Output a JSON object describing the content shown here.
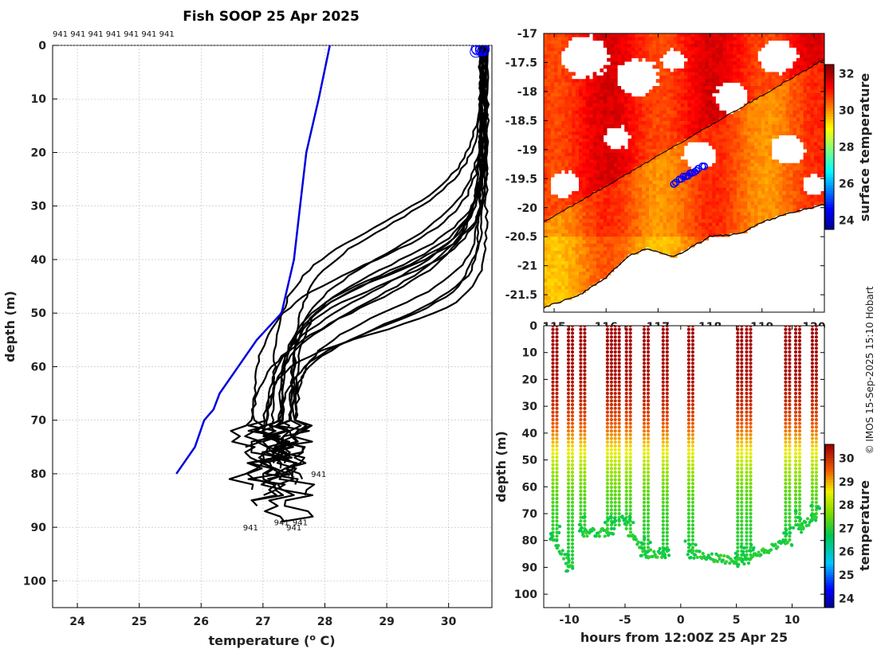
{
  "title": "Fish SOOP 25 Apr 2025",
  "header_tags": "941 941 941 941 941 941 941",
  "credit": "© IMOS 15-Sep-2025 15:10 Hobart",
  "chart_data": [
    {
      "type": "line",
      "name": "temperature-depth profiles",
      "xlabel": "temperature (o C)",
      "xlabel_main": "temperature (",
      "xlabel_sup": "o",
      "xlabel_tail": " C)",
      "ylabel": "depth (m)",
      "xlim": [
        23.6,
        30.7
      ],
      "ylim": [
        105,
        0
      ],
      "xticks": [
        24,
        25,
        26,
        27,
        28,
        29,
        30
      ],
      "yticks": [
        0,
        10,
        20,
        30,
        40,
        50,
        60,
        70,
        80,
        90,
        100
      ],
      "grid": true,
      "climatology": {
        "color": "#0000dd",
        "temp": [
          28.08,
          27.9,
          27.7,
          27.6,
          27.5,
          27.3,
          26.9,
          26.6,
          26.3,
          26.2,
          26.05,
          25.9,
          25.6
        ],
        "depth": [
          0,
          10,
          20,
          30,
          40,
          50,
          55,
          60,
          65,
          68,
          70,
          75,
          80
        ]
      },
      "profile_color": "#000000",
      "surface_marker_color": "#0000ff",
      "bottom_labels": [
        {
          "text": "941",
          "temp": 26.8,
          "depth": 90
        },
        {
          "text": "941",
          "temp": 27.3,
          "depth": 89
        },
        {
          "text": "941",
          "temp": 27.6,
          "depth": 89
        },
        {
          "text": "941",
          "temp": 27.5,
          "depth": 90
        },
        {
          "text": "941",
          "temp": 27.4,
          "depth": 80
        },
        {
          "text": "941",
          "temp": 27.9,
          "depth": 80
        }
      ]
    },
    {
      "type": "heatmap",
      "name": "sea surface temperature map",
      "colorbar_label": "surface temperature",
      "colorbar_ticks": [
        24,
        26,
        28,
        30,
        32
      ],
      "clim": [
        23.5,
        32.5
      ],
      "xlim": [
        114.8,
        120.2
      ],
      "ylim": [
        -21.8,
        -17
      ],
      "yticks": [
        -17,
        -17.5,
        -18,
        -18.5,
        -19,
        -19.5,
        -20,
        -20.5,
        -21,
        -21.5
      ],
      "xticks": [
        115,
        116,
        117,
        118,
        119,
        120
      ],
      "track_color": "#0000ff"
    },
    {
      "type": "scatter",
      "name": "depth-time temperature section",
      "xlabel": "hours from 12:00Z 25 Apr 25",
      "ylabel": "depth (m)",
      "xlim": [
        -12.3,
        12.9
      ],
      "ylim": [
        105,
        0
      ],
      "xticks": [
        -10,
        -5,
        0,
        5,
        10
      ],
      "yticks": [
        0,
        10,
        20,
        30,
        40,
        50,
        60,
        70,
        80,
        90,
        100
      ],
      "colorbar_label": "temperature",
      "colorbar_ticks": [
        24,
        25,
        26,
        27,
        28,
        29,
        30
      ],
      "clim": [
        23.6,
        30.6
      ],
      "casts": [
        {
          "t": -11.3,
          "max_depth": 80
        },
        {
          "t": -9.9,
          "max_depth": 90
        },
        {
          "t": -8.8,
          "max_depth": 77
        },
        {
          "t": -6.4,
          "max_depth": 77
        },
        {
          "t": -5.7,
          "max_depth": 75
        },
        {
          "t": -4.7,
          "max_depth": 77
        },
        {
          "t": -3.1,
          "max_depth": 85
        },
        {
          "t": -1.4,
          "max_depth": 85
        },
        {
          "t": 0.9,
          "max_depth": 85
        },
        {
          "t": 5.3,
          "max_depth": 88
        },
        {
          "t": 6.1,
          "max_depth": 87
        },
        {
          "t": 9.6,
          "max_depth": 80
        },
        {
          "t": 10.5,
          "max_depth": 75
        },
        {
          "t": 12.0,
          "max_depth": 72
        }
      ]
    }
  ]
}
